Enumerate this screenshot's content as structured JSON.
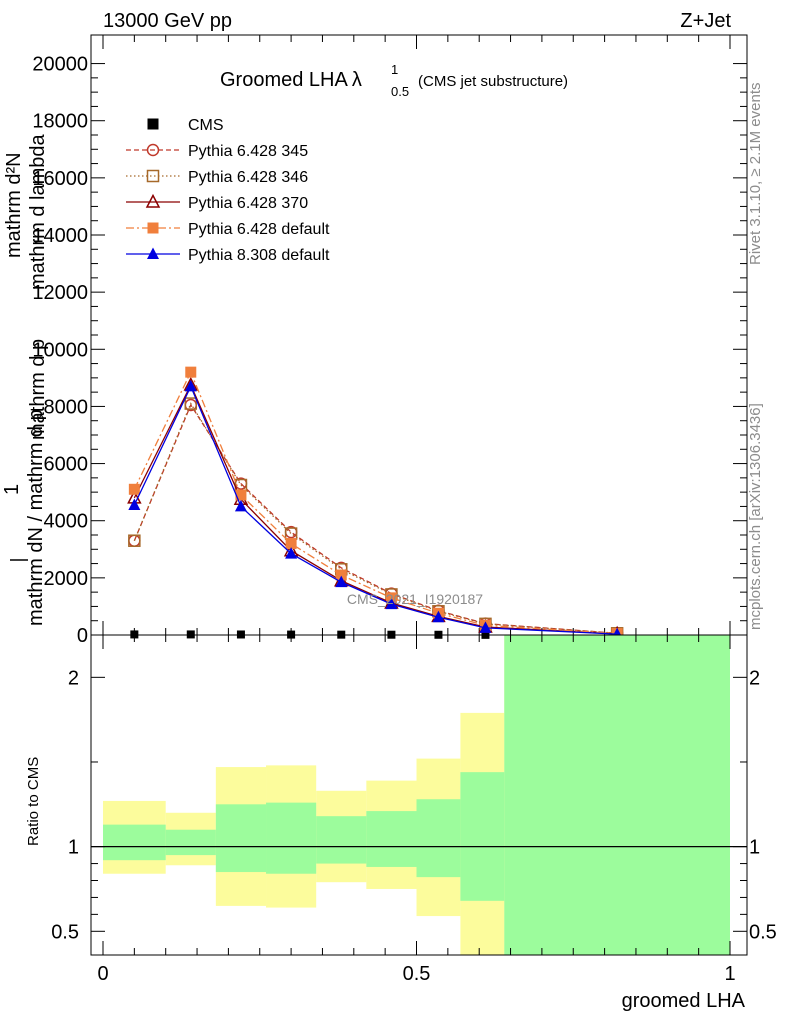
{
  "header": {
    "left": "13000 GeV pp",
    "right": "Z+Jet"
  },
  "side": {
    "rivet": "Rivet 3.1.10, ≥ 2.1M events",
    "mcplots": "mcplots.cern.ch [arXiv:1306.3436]"
  },
  "chart_data": {
    "type": "line",
    "title": "Groomed LHA",
    "title_symbol": "λ",
    "title_sup": "1",
    "title_sub": "0.5",
    "title_suffix": "(CMS jet substructure)",
    "watermark": "CMS_2021_I1920187",
    "ylabel_top": "mathrm d²N",
    "ylabel_top2": "1",
    "ylabel_main": "mathrm dN / mathrm d p",
    "ylabel_main2": "mathrm d p",
    "ylabel_main3": "mathrm d lambda",
    "ylabel_full": "mathrm dN / mathrm d p_T mathrm d p_T mathrm d lambda",
    "xlabel": "groomed LHA",
    "ylim": [
      0,
      21000
    ],
    "xlim": [
      0,
      1
    ],
    "yticks": [
      0,
      2000,
      4000,
      6000,
      8000,
      10000,
      12000,
      14000,
      16000,
      18000,
      20000
    ],
    "ytick_labels": [
      "0",
      "2000",
      "4000",
      "6000",
      "8000",
      "10000",
      "12000",
      "14000",
      "16000",
      "18000",
      "20000"
    ],
    "xticks": [
      0,
      0.5,
      1
    ],
    "xtick_labels": [
      "0",
      "0.5",
      "1"
    ],
    "x": [
      0.05,
      0.14,
      0.22,
      0.3,
      0.38,
      0.46,
      0.535,
      0.61,
      0.82
    ],
    "series": [
      {
        "name": "CMS",
        "color": "#000000",
        "marker": "square-filled",
        "dash": "none",
        "values": [
          20,
          20,
          18,
          15,
          12,
          10,
          8,
          5,
          2
        ]
      },
      {
        "name": "Pythia 6.428 345",
        "color": "#c0392b",
        "marker": "circle-open",
        "dash": "5,3",
        "values": [
          3300,
          8050,
          5300,
          3600,
          2350,
          1450,
          850,
          400,
          60
        ]
      },
      {
        "name": "Pythia 6.428 346",
        "color": "#a6692a",
        "marker": "square-open",
        "dash": "1.5,2.5",
        "values": [
          3300,
          8100,
          5250,
          3550,
          2300,
          1420,
          830,
          390,
          60
        ]
      },
      {
        "name": "Pythia 6.428 370",
        "color": "#8b0000",
        "marker": "triangle-open",
        "dash": "none",
        "values": [
          4800,
          8750,
          4750,
          2950,
          1900,
          1120,
          650,
          280,
          40
        ]
      },
      {
        "name": "Pythia 6.428 default",
        "color": "#f07f3c",
        "marker": "square-filled",
        "dash": "8,3,2,3",
        "values": [
          5100,
          9200,
          4900,
          3200,
          2100,
          1300,
          760,
          340,
          50
        ]
      },
      {
        "name": "Pythia 8.308 default",
        "color": "#0000e0",
        "marker": "triangle-filled",
        "dash": "none",
        "values": [
          4550,
          8700,
          4500,
          2850,
          1850,
          1080,
          620,
          250,
          30
        ]
      }
    ],
    "ratio": {
      "ylabel": "Ratio to CMS",
      "ylim": [
        0.36,
        2.25
      ],
      "yticks": [
        0.5,
        1,
        2
      ],
      "ytick_labels": [
        "0.5",
        "1",
        "2"
      ],
      "bins": [
        0,
        0.1,
        0.18,
        0.26,
        0.34,
        0.42,
        0.5,
        0.57,
        0.64,
        1.0
      ],
      "green_hi": [
        1.13,
        1.1,
        1.25,
        1.26,
        1.18,
        1.21,
        1.28,
        1.44,
        2.25
      ],
      "green_lo": [
        0.92,
        0.95,
        0.85,
        0.84,
        0.9,
        0.88,
        0.82,
        0.68,
        0.36
      ],
      "yellow_hi": [
        1.27,
        1.2,
        1.47,
        1.48,
        1.33,
        1.39,
        1.52,
        1.79,
        2.25
      ],
      "yellow_lo": [
        0.84,
        0.89,
        0.65,
        0.64,
        0.79,
        0.75,
        0.59,
        0.36,
        0.36
      ],
      "green_color": "#9cfc9c",
      "yellow_color": "#fcfc9c"
    }
  }
}
